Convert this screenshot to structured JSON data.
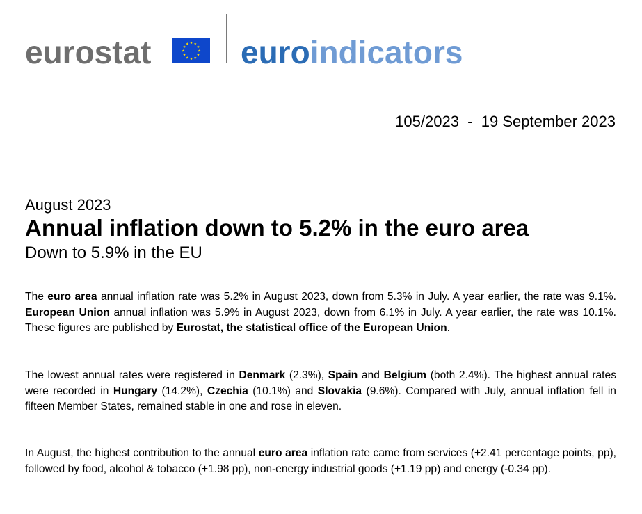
{
  "header": {
    "brand_left": "eurostat",
    "brand_right_part1": "euro",
    "brand_right_part2": "indicators"
  },
  "release": {
    "number": "105/2023",
    "separator": "-",
    "date": "19 September 2023"
  },
  "headline": {
    "period": "August 2023",
    "title": "Annual inflation down to 5.2% in the euro area",
    "subtitle": "Down to 5.9% in the EU"
  },
  "paragraphs": {
    "p1": {
      "s1": "The ",
      "b1": "euro area",
      "s2": " annual inflation rate was 5.2% in August 2023, down from 5.3% in July. A year earlier, the rate was 9.1%. ",
      "b2": "European Union",
      "s3": " annual inflation was 5.9% in August 2023, down from 6.1% in July. A year earlier, the rate was 10.1%. These figures are published by ",
      "b3": "Eurostat, the statistical office of the European Union",
      "s4": "."
    },
    "p2": {
      "s1": "The lowest annual rates were registered in ",
      "b1": "Denmark",
      "s2": " (2.3%), ",
      "b2": "Spain",
      "s3": " and ",
      "b3": "Belgium",
      "s4": " (both 2.4%). The highest annual rates were recorded in ",
      "b4": "Hungary",
      "s5": " (14.2%), ",
      "b5": "Czechia",
      "s6": " (10.1%) and ",
      "b6": "Slovakia",
      "s7": " (9.6%). Compared with July, annual inflation fell in fifteen Member States, remained stable in one and rose in eleven."
    },
    "p3": {
      "s1": "In August, the highest contribution to the annual ",
      "b1": "euro area",
      "s2": " inflation rate came from services (+2.41 percentage points, pp), followed by food, alcohol & tobacco (+1.98 pp), non-energy industrial goods (+1.19 pp) and energy (-0.34 pp)."
    }
  },
  "colors": {
    "eurostat_gray": "#6e6e6e",
    "euro_blue": "#2b6cb5",
    "indicators_light_blue": "#6f9bd4",
    "flag_blue": "#0e47cb",
    "flag_stars": "#ffdd00"
  },
  "icons": {
    "flag": "eu-flag-icon"
  }
}
